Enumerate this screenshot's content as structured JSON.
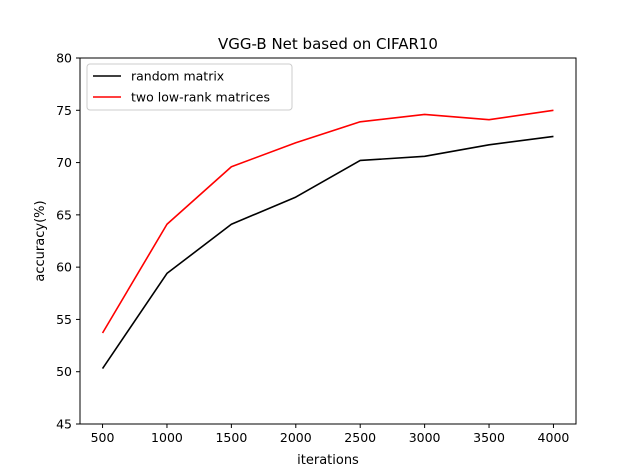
{
  "chart_data": {
    "type": "line",
    "title": "VGG-B Net based on CIFAR10",
    "xlabel": "iterations",
    "ylabel": "accuracy(%)",
    "x": [
      500,
      1000,
      1500,
      2000,
      2500,
      3000,
      3500,
      4000
    ],
    "xlim": [
      325,
      4175
    ],
    "ylim": [
      45,
      80
    ],
    "xticks": [
      500,
      1000,
      1500,
      2000,
      2500,
      3000,
      3500,
      4000
    ],
    "yticks": [
      45,
      50,
      55,
      60,
      65,
      70,
      75,
      80
    ],
    "grid": false,
    "legend_position": "top-left",
    "series": [
      {
        "name": "random matrix",
        "color": "#000000",
        "values": [
          50.3,
          59.4,
          64.1,
          66.7,
          70.2,
          70.6,
          71.7,
          72.5
        ]
      },
      {
        "name": "two low-rank matrices",
        "color": "#ff0000",
        "values": [
          53.7,
          64.1,
          69.6,
          71.9,
          73.9,
          74.6,
          74.1,
          75.0
        ]
      }
    ]
  }
}
